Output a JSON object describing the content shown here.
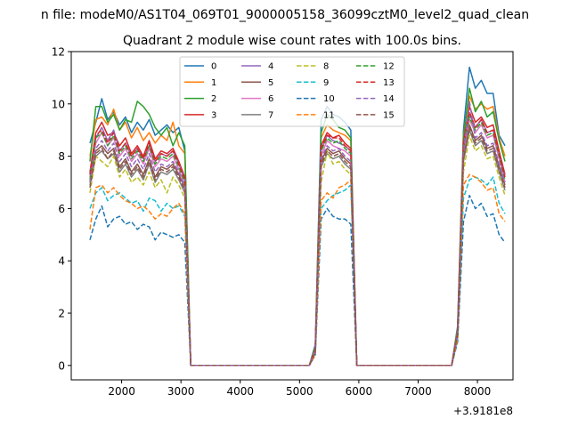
{
  "suptitle": "n file: modeM0/AS1T04_069T01_9000005158_36099cztM0_level2_quad_clean",
  "chart_data": {
    "type": "line",
    "title": "Quadrant 2 module wise count rates with 100.0s bins.",
    "xlabel": "",
    "ylabel": "",
    "x_offset_label": "+3.9181e8",
    "xlim": [
      1150,
      8600
    ],
    "ylim": [
      -0.55,
      12
    ],
    "x_ticks": [
      2000,
      3000,
      4000,
      5000,
      6000,
      7000,
      8000
    ],
    "y_ticks": [
      0,
      2,
      4,
      6,
      8,
      10,
      12
    ],
    "grid": false,
    "legend_position": "top-center",
    "x": [
      1465,
      1565,
      1665,
      1765,
      1865,
      1965,
      2065,
      2165,
      2265,
      2365,
      2465,
      2565,
      2665,
      2765,
      2865,
      2965,
      3065,
      3165,
      3265,
      3365,
      3465,
      3565,
      3665,
      3765,
      3865,
      3965,
      4065,
      4165,
      4265,
      4365,
      4465,
      4565,
      4665,
      4765,
      4865,
      4965,
      5065,
      5165,
      5265,
      5365,
      5465,
      5565,
      5665,
      5765,
      5865,
      5965,
      6065,
      6165,
      6265,
      6365,
      6465,
      6565,
      6665,
      6765,
      6865,
      6965,
      7065,
      7165,
      7265,
      7365,
      7465,
      7565,
      7665,
      7765,
      7865,
      7965,
      8065,
      8165,
      8265,
      8365,
      8465
    ],
    "series": [
      {
        "name": "0",
        "color": "#1f77b4",
        "dash": "solid",
        "values": [
          8.5,
          9.3,
          10.2,
          9.4,
          9.7,
          9.2,
          9.5,
          8.9,
          9.3,
          9.0,
          9.4,
          8.8,
          9.0,
          9.2,
          8.9,
          9.1,
          8.2,
          0.0,
          0,
          0,
          0,
          0,
          0,
          0,
          0,
          0,
          0,
          0,
          0,
          0,
          0,
          0,
          0,
          0,
          0,
          0,
          0,
          0,
          0.8,
          9.4,
          9.9,
          9.6,
          9.5,
          9.3,
          9.0,
          0.0,
          0,
          0,
          0,
          0,
          0,
          0,
          0,
          0,
          0,
          0,
          0,
          0,
          0,
          0,
          0,
          0,
          1.5,
          9.0,
          11.4,
          10.6,
          10.9,
          10.4,
          10.4,
          8.8,
          8.4
        ]
      },
      {
        "name": "1",
        "color": "#ff7f0e",
        "dash": "solid",
        "values": [
          8.0,
          9.4,
          9.5,
          9.2,
          9.8,
          9.0,
          9.3,
          8.7,
          9.1,
          8.6,
          8.9,
          8.5,
          8.8,
          8.6,
          9.3,
          8.4,
          8.1,
          0.0,
          0,
          0,
          0,
          0,
          0,
          0,
          0,
          0,
          0,
          0,
          0,
          0,
          0,
          0,
          0,
          0,
          0,
          0,
          0,
          0,
          0.7,
          8.7,
          9.2,
          9.0,
          8.9,
          8.8,
          8.6,
          0.0,
          0,
          0,
          0,
          0,
          0,
          0,
          0,
          0,
          0,
          0,
          0,
          0,
          0,
          0,
          0,
          0,
          1.4,
          8.8,
          10.3,
          9.8,
          10.0,
          9.8,
          9.9,
          8.7,
          8.0
        ]
      },
      {
        "name": "2",
        "color": "#2ca02c",
        "dash": "solid",
        "values": [
          7.8,
          9.9,
          9.9,
          9.3,
          9.6,
          9.0,
          9.4,
          9.3,
          10.1,
          9.9,
          9.6,
          9.1,
          8.8,
          9.1,
          8.4,
          8.9,
          8.4,
          0.0,
          0,
          0,
          0,
          0,
          0,
          0,
          0,
          0,
          0,
          0,
          0,
          0,
          0,
          0,
          0,
          0,
          0,
          0,
          0,
          0,
          0.7,
          8.9,
          9.6,
          9.4,
          9.1,
          9.0,
          8.7,
          0.0,
          0,
          0,
          0,
          0,
          0,
          0,
          0,
          0,
          0,
          0,
          0,
          0,
          0,
          0,
          0,
          0,
          1.4,
          8.7,
          10.6,
          9.7,
          10.1,
          9.5,
          9.7,
          8.6,
          7.8
        ]
      },
      {
        "name": "3",
        "color": "#d62728",
        "dash": "solid",
        "values": [
          7.4,
          8.9,
          9.3,
          8.8,
          8.9,
          8.4,
          8.7,
          8.1,
          8.4,
          8.0,
          8.6,
          7.9,
          8.2,
          8.1,
          8.3,
          7.8,
          7.2,
          0.0,
          0,
          0,
          0,
          0,
          0,
          0,
          0,
          0,
          0,
          0,
          0,
          0,
          0,
          0,
          0,
          0,
          0,
          0,
          0,
          0,
          0.6,
          8.4,
          8.9,
          8.7,
          8.8,
          8.5,
          8.3,
          0.0,
          0,
          0,
          0,
          0,
          0,
          0,
          0,
          0,
          0,
          0,
          0,
          0,
          0,
          0,
          0,
          0,
          1.3,
          8.5,
          9.9,
          9.3,
          9.5,
          9.1,
          9.2,
          8.2,
          7.3
        ]
      },
      {
        "name": "4",
        "color": "#9467bd",
        "dash": "solid",
        "values": [
          7.3,
          8.7,
          9.1,
          8.6,
          9.0,
          8.2,
          8.5,
          8.0,
          8.3,
          7.9,
          8.4,
          7.8,
          8.1,
          8.0,
          8.2,
          7.7,
          7.1,
          0.0,
          0,
          0,
          0,
          0,
          0,
          0,
          0,
          0,
          0,
          0,
          0,
          0,
          0,
          0,
          0,
          0,
          0,
          0,
          0,
          0,
          0.6,
          8.2,
          8.8,
          8.6,
          8.5,
          8.4,
          8.2,
          0.0,
          0,
          0,
          0,
          0,
          0,
          0,
          0,
          0,
          0,
          0,
          0,
          0,
          0,
          0,
          0,
          0,
          1.3,
          8.4,
          9.6,
          9.1,
          9.4,
          8.9,
          9.0,
          8.0,
          7.2
        ]
      },
      {
        "name": "5",
        "color": "#8c564b",
        "dash": "solid",
        "values": [
          7.0,
          8.2,
          8.4,
          8.1,
          8.3,
          7.6,
          7.9,
          7.4,
          7.7,
          7.3,
          7.9,
          7.2,
          7.6,
          7.5,
          7.7,
          7.3,
          6.8,
          0.0,
          0,
          0,
          0,
          0,
          0,
          0,
          0,
          0,
          0,
          0,
          0,
          0,
          0,
          0,
          0,
          0,
          0,
          0,
          0,
          0,
          0.5,
          7.8,
          8.3,
          8.1,
          8.2,
          7.9,
          7.7,
          0.0,
          0,
          0,
          0,
          0,
          0,
          0,
          0,
          0,
          0,
          0,
          0,
          0,
          0,
          0,
          0,
          0,
          1.2,
          8.0,
          9.2,
          8.6,
          8.8,
          8.3,
          8.4,
          7.6,
          6.9
        ]
      },
      {
        "name": "6",
        "color": "#e377c2",
        "dash": "solid",
        "values": [
          7.2,
          8.5,
          8.9,
          8.4,
          8.7,
          8.0,
          8.3,
          7.8,
          8.1,
          7.7,
          8.3,
          7.6,
          7.9,
          7.8,
          8.0,
          7.5,
          6.9,
          0.0,
          0,
          0,
          0,
          0,
          0,
          0,
          0,
          0,
          0,
          0,
          0,
          0,
          0,
          0,
          0,
          0,
          0,
          0,
          0,
          0,
          0.6,
          8.0,
          8.6,
          8.4,
          8.3,
          8.2,
          8.0,
          0.0,
          0,
          0,
          0,
          0,
          0,
          0,
          0,
          0,
          0,
          0,
          0,
          0,
          0,
          0,
          0,
          0,
          1.3,
          8.2,
          9.4,
          8.9,
          9.2,
          8.7,
          8.8,
          7.9,
          7.0
        ]
      },
      {
        "name": "7",
        "color": "#7f7f7f",
        "dash": "solid",
        "values": [
          6.9,
          8.0,
          8.2,
          7.9,
          8.1,
          7.4,
          7.7,
          7.2,
          7.5,
          7.1,
          7.7,
          7.0,
          7.4,
          7.3,
          7.5,
          7.1,
          6.6,
          0.0,
          0,
          0,
          0,
          0,
          0,
          0,
          0,
          0,
          0,
          0,
          0,
          0,
          0,
          0,
          0,
          0,
          0,
          0,
          0,
          0,
          0.5,
          7.6,
          8.1,
          7.9,
          8.0,
          7.7,
          7.5,
          0.0,
          0,
          0,
          0,
          0,
          0,
          0,
          0,
          0,
          0,
          0,
          0,
          0,
          0,
          0,
          0,
          0,
          1.2,
          7.8,
          9.0,
          8.4,
          8.6,
          8.1,
          8.2,
          7.4,
          6.7
        ]
      },
      {
        "name": "8",
        "color": "#bcbd22",
        "dash": "dashed",
        "values": [
          6.6,
          8.0,
          7.8,
          7.6,
          8.0,
          7.2,
          7.5,
          7.0,
          7.2,
          6.9,
          7.4,
          6.8,
          7.1,
          6.6,
          7.2,
          6.9,
          6.4,
          0.0,
          0,
          0,
          0,
          0,
          0,
          0,
          0,
          0,
          0,
          0,
          0,
          0,
          0,
          0,
          0,
          0,
          0,
          0,
          0,
          0,
          0.5,
          7.0,
          8.2,
          7.7,
          7.8,
          7.5,
          7.3,
          0.0,
          0,
          0,
          0,
          0,
          0,
          0,
          0,
          0,
          0,
          0,
          0,
          0,
          0,
          0,
          0,
          0,
          1.1,
          7.4,
          8.8,
          8.2,
          8.4,
          7.9,
          8.0,
          7.2,
          6.5
        ]
      },
      {
        "name": "9",
        "color": "#17becf",
        "dash": "dashed",
        "values": [
          6.0,
          6.6,
          6.8,
          6.3,
          6.5,
          6.6,
          6.4,
          6.2,
          6.3,
          5.9,
          6.4,
          6.3,
          5.9,
          6.2,
          6.0,
          6.1,
          5.7,
          0.0,
          0,
          0,
          0,
          0,
          0,
          0,
          0,
          0,
          0,
          0,
          0,
          0,
          0,
          0,
          0,
          0,
          0,
          0,
          0,
          0,
          0.4,
          6.0,
          6.3,
          6.5,
          6.6,
          6.7,
          6.9,
          0.0,
          0,
          0,
          0,
          0,
          0,
          0,
          0,
          0,
          0,
          0,
          0,
          0,
          0,
          0,
          0,
          0,
          1.0,
          6.4,
          7.1,
          7.2,
          7.1,
          6.9,
          7.2,
          6.2,
          5.8
        ]
      },
      {
        "name": "10",
        "color": "#1f77b4",
        "dash": "dashed",
        "values": [
          4.8,
          5.6,
          6.1,
          5.3,
          5.6,
          5.7,
          5.4,
          5.5,
          5.2,
          5.4,
          5.3,
          4.8,
          5.1,
          5.0,
          4.9,
          5.0,
          4.7,
          0.0,
          0,
          0,
          0,
          0,
          0,
          0,
          0,
          0,
          0,
          0,
          0,
          0,
          0,
          0,
          0,
          0,
          0,
          0,
          0,
          0,
          0.4,
          5.6,
          6.0,
          5.7,
          5.6,
          5.6,
          5.4,
          0.0,
          0,
          0,
          0,
          0,
          0,
          0,
          0,
          0,
          0,
          0,
          0,
          0,
          0,
          0,
          0,
          0,
          0.9,
          5.5,
          6.5,
          6.0,
          6.2,
          5.7,
          5.8,
          5.0,
          4.7
        ]
      },
      {
        "name": "11",
        "color": "#ff7f0e",
        "dash": "dashed",
        "values": [
          5.2,
          6.8,
          6.9,
          6.6,
          6.8,
          6.5,
          6.3,
          6.2,
          6.0,
          6.1,
          5.9,
          5.6,
          5.8,
          5.7,
          6.0,
          6.2,
          5.8,
          0.0,
          0,
          0,
          0,
          0,
          0,
          0,
          0,
          0,
          0,
          0,
          0,
          0,
          0,
          0,
          0,
          0,
          0,
          0,
          0,
          0,
          0.4,
          6.3,
          6.6,
          6.4,
          6.8,
          6.9,
          7.1,
          0.0,
          0,
          0,
          0,
          0,
          0,
          0,
          0,
          0,
          0,
          0,
          0,
          0,
          0,
          0,
          0,
          0,
          1.0,
          6.9,
          7.3,
          7.2,
          7.0,
          6.7,
          6.8,
          5.8,
          5.5
        ]
      },
      {
        "name": "12",
        "color": "#2ca02c",
        "dash": "dashed",
        "values": [
          7.1,
          8.7,
          8.9,
          8.4,
          8.8,
          8.1,
          8.4,
          7.9,
          8.2,
          7.8,
          8.4,
          7.7,
          8.0,
          7.9,
          8.1,
          7.6,
          7.0,
          0.0,
          0,
          0,
          0,
          0,
          0,
          0,
          0,
          0,
          0,
          0,
          0,
          0,
          0,
          0,
          0,
          0,
          0,
          0,
          0,
          0,
          0.6,
          8.2,
          8.7,
          8.5,
          8.6,
          8.3,
          8.1,
          0.0,
          0,
          0,
          0,
          0,
          0,
          0,
          0,
          0,
          0,
          0,
          0,
          0,
          0,
          0,
          0,
          0,
          1.3,
          8.3,
          9.5,
          9.0,
          9.3,
          8.8,
          8.9,
          8.0,
          7.1
        ]
      },
      {
        "name": "13",
        "color": "#d62728",
        "dash": "dashed",
        "values": [
          7.3,
          8.8,
          9.0,
          8.5,
          8.9,
          8.2,
          8.5,
          8.0,
          8.3,
          7.9,
          8.5,
          7.8,
          8.1,
          8.0,
          8.2,
          7.7,
          7.1,
          0.0,
          0,
          0,
          0,
          0,
          0,
          0,
          0,
          0,
          0,
          0,
          0,
          0,
          0,
          0,
          0,
          0,
          0,
          0,
          0,
          0,
          0.6,
          8.3,
          8.8,
          8.7,
          8.7,
          8.4,
          8.2,
          0.0,
          0,
          0,
          0,
          0,
          0,
          0,
          0,
          0,
          0,
          0,
          0,
          0,
          0,
          0,
          0,
          0,
          1.3,
          8.4,
          9.7,
          9.1,
          9.4,
          8.9,
          9.0,
          8.1,
          7.2
        ]
      },
      {
        "name": "14",
        "color": "#9467bd",
        "dash": "dashed",
        "values": [
          7.0,
          8.3,
          8.6,
          8.2,
          8.5,
          7.8,
          8.1,
          7.6,
          7.9,
          7.5,
          8.1,
          7.4,
          7.7,
          7.6,
          7.8,
          7.4,
          6.8,
          0.0,
          0,
          0,
          0,
          0,
          0,
          0,
          0,
          0,
          0,
          0,
          0,
          0,
          0,
          0,
          0,
          0,
          0,
          0,
          0,
          0,
          0.5,
          7.9,
          8.4,
          8.2,
          8.3,
          8.0,
          7.8,
          0.0,
          0,
          0,
          0,
          0,
          0,
          0,
          0,
          0,
          0,
          0,
          0,
          0,
          0,
          0,
          0,
          0,
          1.2,
          8.1,
          10.1,
          8.7,
          8.9,
          8.4,
          8.5,
          7.7,
          7.0
        ]
      },
      {
        "name": "15",
        "color": "#8c564b",
        "dash": "dashed",
        "values": [
          6.8,
          8.1,
          8.3,
          7.9,
          8.2,
          7.5,
          7.8,
          7.3,
          7.6,
          7.2,
          7.8,
          7.1,
          7.5,
          7.4,
          7.6,
          7.2,
          6.7,
          0.0,
          0,
          0,
          0,
          0,
          0,
          0,
          0,
          0,
          0,
          0,
          0,
          0,
          0,
          0,
          0,
          0,
          0,
          0,
          0,
          0,
          0.5,
          7.7,
          8.2,
          8.0,
          8.1,
          7.8,
          7.6,
          0.0,
          0,
          0,
          0,
          0,
          0,
          0,
          0,
          0,
          0,
          0,
          0,
          0,
          0,
          0,
          0,
          0,
          1.2,
          7.9,
          9.1,
          8.5,
          8.7,
          8.2,
          8.3,
          7.5,
          6.8
        ]
      }
    ]
  }
}
